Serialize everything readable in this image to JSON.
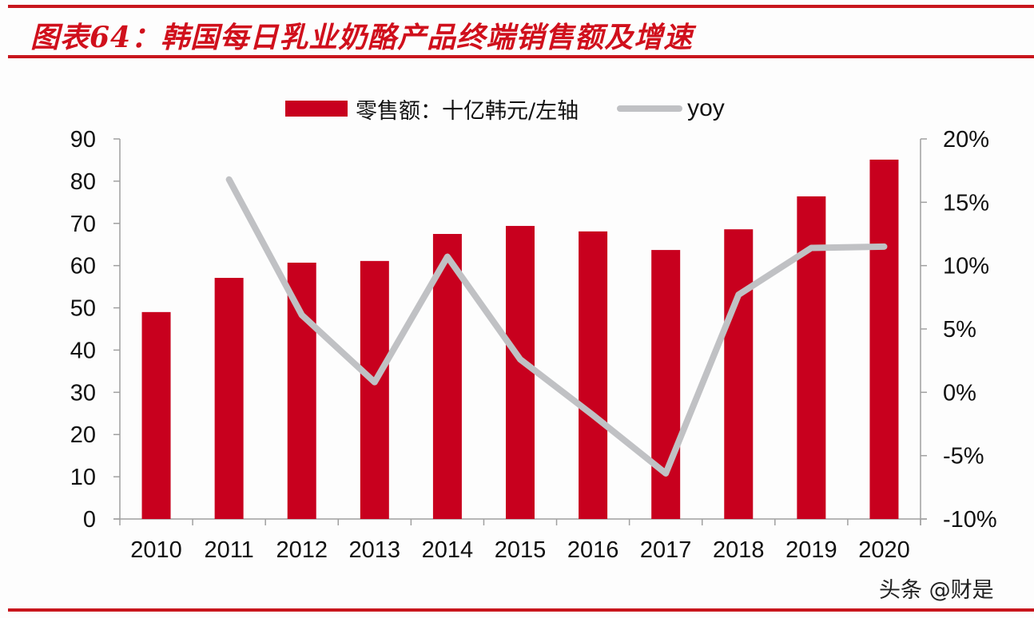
{
  "header": {
    "title": "图表64：韩国每日乳业奶酪产品终端销售额及增速"
  },
  "legend": {
    "bar_label": "零售额：十亿韩元/左轴",
    "line_label": "yoy"
  },
  "watermark": "头条 @财是",
  "colors": {
    "accent_red": "#c8161d",
    "bar": "#c8001e",
    "line": "#c0c1c4",
    "axis": "#a0a0a0"
  },
  "chart_data": {
    "type": "bar+line",
    "title": "图表64：韩国每日乳业奶酪产品终端销售额及增速",
    "categories": [
      "2010",
      "2011",
      "2012",
      "2013",
      "2014",
      "2015",
      "2016",
      "2017",
      "2018",
      "2019",
      "2020"
    ],
    "series": [
      {
        "name": "零售额：十亿韩元/左轴",
        "type": "bar",
        "axis": "left",
        "values": [
          49.0,
          57.1,
          60.7,
          61.1,
          67.5,
          69.4,
          68.1,
          63.7,
          68.6,
          76.4,
          85.1
        ]
      },
      {
        "name": "yoy",
        "type": "line",
        "axis": "right",
        "unit": "%",
        "values": [
          null,
          16.8,
          6.1,
          0.8,
          10.7,
          2.6,
          -1.8,
          -6.4,
          7.7,
          11.4,
          11.5
        ]
      }
    ],
    "left_axis": {
      "ylim": [
        0,
        90
      ],
      "ticks": [
        "0",
        "10",
        "20",
        "30",
        "40",
        "50",
        "60",
        "70",
        "80",
        "90"
      ]
    },
    "right_axis": {
      "ylim": [
        -10,
        20
      ],
      "ticks": [
        "-10%",
        "-5%",
        "0%",
        "5%",
        "10%",
        "15%",
        "20%"
      ]
    },
    "xlabel": "",
    "ylabel": "",
    "grid": false,
    "legend_position": "top"
  }
}
